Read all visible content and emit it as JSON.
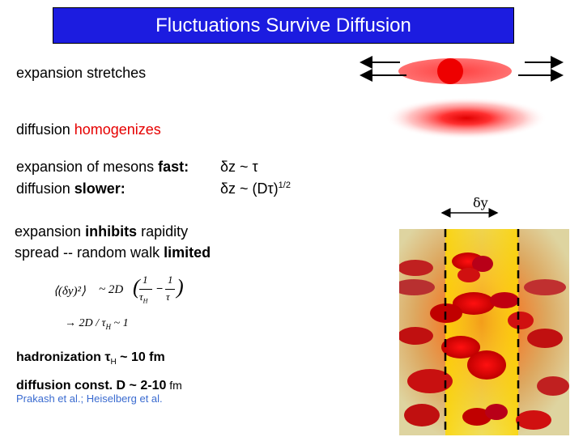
{
  "title": "Fluctuations Survive Diffusion",
  "line_expansion": "expansion stretches",
  "line_diffusion_a": "diffusion ",
  "line_diffusion_b": "homogenizes",
  "mesons_a": "expansion of mesons ",
  "mesons_b": "fast:",
  "mesons_rel": "δz ~ τ",
  "diff_a": "diffusion ",
  "diff_b": "slower:",
  "diff_rel_a": "δz ~ (Dτ)",
  "diff_rel_sup": "1/2",
  "inhibit_a": "expansion ",
  "inhibit_b": "inhibits",
  "inhibit_c": " rapidity",
  "spread_a": "spread -- random walk ",
  "spread_b": "limited",
  "hadron_a": "hadronization τ",
  "hadron_sub": "H",
  "hadron_b": " ~ 10 fm",
  "dconst_a": "diffusion const.  D ~ 2-10",
  "dconst_b": " fm",
  "citation": "Prakash et al.; Heiselberg et al.",
  "dy_label": "δy",
  "formula": {
    "lhs": "⟨(δy)²⟩",
    "rel1": "~ 2D",
    "num1": "1",
    "den1": "τ",
    "den1_sub": "H",
    "minus": "−",
    "num2": "1",
    "den2": "τ",
    "line2": "→ 2D / τ",
    "line2_sub": "H",
    "line2_end": " ~ 1"
  },
  "colors": {
    "title_bg": "#1c1ce0",
    "accent_red": "#e60000",
    "citation_blue": "#3a6bd0",
    "band_yellow": "#ffe100"
  }
}
